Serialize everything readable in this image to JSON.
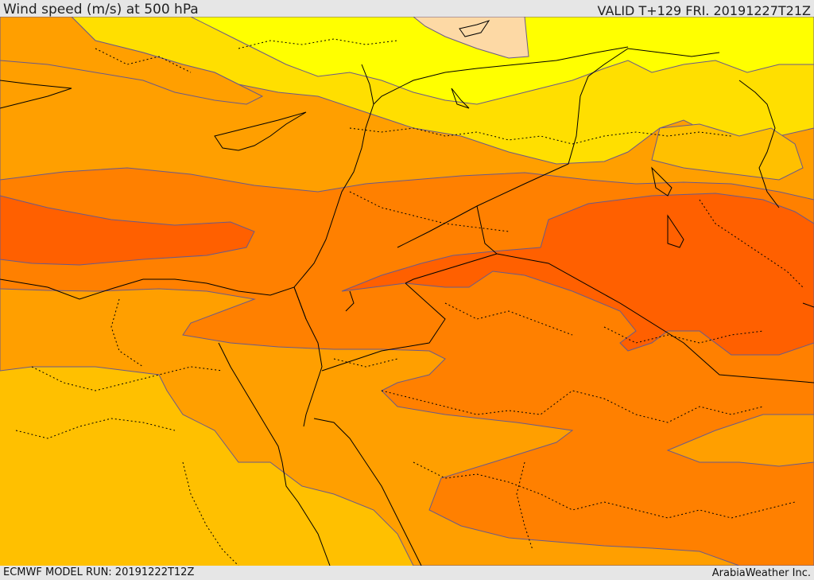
{
  "header": {
    "title": "Wind speed (m/s) at 500 hPa",
    "valid": "VALID T+129 FRI. 20191227T21Z"
  },
  "footer": {
    "model_run": "ECMWF MODEL RUN: 20191222T12Z",
    "credit": "ArabiaWeather Inc."
  },
  "map": {
    "colors": {
      "very_light": "#fdd9a5",
      "yellow": "#ffff00",
      "light_gold": "#ffdf00",
      "gold": "#ffc000",
      "orange": "#ff9f00",
      "dark_orange": "#ff8000",
      "red_orange": "#ff6000",
      "contour_line": "#6a5a8a",
      "border_line": "#000000"
    }
  }
}
